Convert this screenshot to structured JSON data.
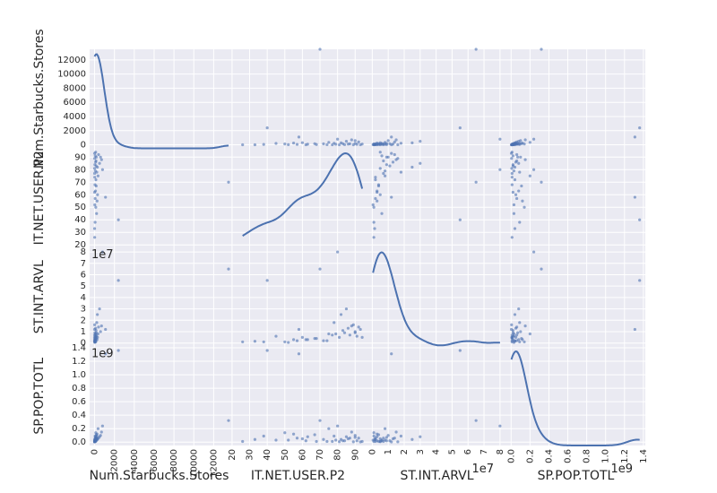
{
  "chart_data": {
    "type": "scatter",
    "variables": [
      "Num.Starbucks.Stores",
      "IT.NET.USER.P2",
      "ST.INT.ARVL",
      "SP.POP.TOTL"
    ],
    "grid": true,
    "diagonal": "kde",
    "ticks": {
      "Num.Starbucks.Stores": {
        "values": [
          0,
          2000,
          4000,
          6000,
          8000,
          10000,
          12000
        ],
        "labels": [
          "0",
          "2000",
          "4000",
          "6000",
          "8000",
          "10000",
          "12000"
        ],
        "offset": ""
      },
      "IT.NET.USER.P2": {
        "values": [
          20,
          30,
          40,
          50,
          60,
          70,
          80,
          90
        ],
        "labels": [
          "20",
          "30",
          "40",
          "50",
          "60",
          "70",
          "80",
          "90"
        ],
        "offset": ""
      },
      "ST.INT.ARVL": {
        "values": [
          0,
          1,
          2,
          3,
          4,
          5,
          6,
          7,
          8
        ],
        "labels": [
          "0",
          "1",
          "2",
          "3",
          "4",
          "5",
          "6",
          "7",
          "8"
        ],
        "offset": "1e7"
      },
      "SP.POP.TOTL": {
        "values": [
          0,
          0.2,
          0.4,
          0.6,
          0.8,
          1.0,
          1.2,
          1.4
        ],
        "labels": [
          "0.0",
          "0.2",
          "0.4",
          "0.6",
          "0.8",
          "1.0",
          "1.2",
          "1.4"
        ],
        "offset": "1e9"
      }
    },
    "ranges": {
      "Num.Starbucks.Stores": [
        -500,
        13500
      ],
      "IT.NET.USER.P2": [
        18,
        97
      ],
      "ST.INT.ARVL": [
        -0.3,
        8.4
      ],
      "SP.POP.TOTL": [
        -0.05,
        1.42
      ]
    },
    "data": [
      [
        13500,
        70,
        6.5,
        0.32
      ],
      [
        2400,
        40,
        5.5,
        1.36
      ],
      [
        1100,
        58,
        1.2,
        1.31
      ],
      [
        800,
        80,
        8.0,
        0.24
      ],
      [
        700,
        88,
        1.5,
        0.15
      ],
      [
        600,
        90,
        1.0,
        0.1
      ],
      [
        500,
        85,
        3.0,
        0.08
      ],
      [
        400,
        92,
        1.4,
        0.06
      ],
      [
        350,
        75,
        0.8,
        0.2
      ],
      [
        300,
        60,
        0.5,
        0.05
      ],
      [
        280,
        82,
        2.5,
        0.04
      ],
      [
        250,
        55,
        0.3,
        0.12
      ],
      [
        220,
        78,
        1.8,
        0.09
      ],
      [
        200,
        45,
        0.6,
        0.03
      ],
      [
        180,
        90,
        0.9,
        0.07
      ],
      [
        160,
        67,
        0.4,
        0.11
      ],
      [
        150,
        83,
        1.1,
        0.02
      ],
      [
        140,
        87,
        0.7,
        0.06
      ],
      [
        130,
        72,
        0.2,
        0.04
      ],
      [
        120,
        50,
        0.1,
        0.14
      ],
      [
        110,
        94,
        0.5,
        0.01
      ],
      [
        100,
        86,
        1.3,
        0.05
      ],
      [
        90,
        63,
        0.3,
        0.08
      ],
      [
        80,
        79,
        0.8,
        0.03
      ],
      [
        70,
        91,
        0.6,
        0.02
      ],
      [
        60,
        57,
        0.2,
        0.06
      ],
      [
        50,
        38,
        0.1,
        0.09
      ],
      [
        40,
        68,
        0.4,
        0.01
      ],
      [
        30,
        84,
        0.9,
        0.02
      ],
      [
        20,
        52,
        0.05,
        0.03
      ],
      [
        15,
        74,
        0.2,
        0.01
      ],
      [
        10,
        26,
        0.1,
        0.01
      ],
      [
        8,
        89,
        1.6,
        0.005
      ],
      [
        5,
        62,
        0.3,
        0.02
      ],
      [
        3,
        33,
        0.15,
        0.04
      ],
      [
        2,
        77,
        0.7,
        0.01
      ],
      [
        1,
        93,
        1.2,
        0.003
      ],
      [
        0,
        81,
        0.5,
        0.007
      ]
    ]
  }
}
